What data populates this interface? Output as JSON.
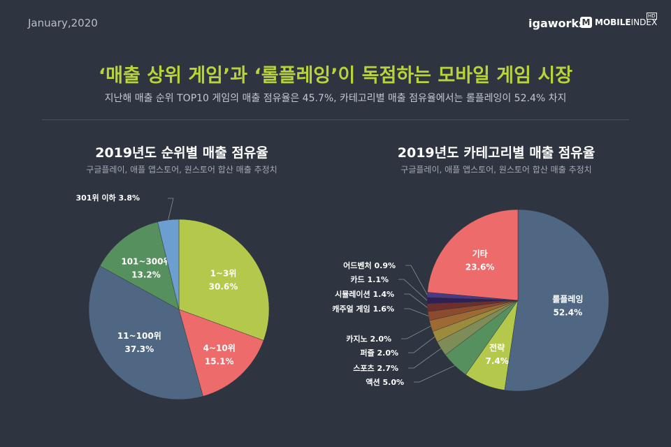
{
  "header": {
    "date": "January,2020",
    "brand_left": "igaworks",
    "brand_right_mark": "M",
    "brand_right_bold": "MOBILE",
    "brand_right_light": "INDEX",
    "brand_right_badge": "HD"
  },
  "title": "‘매출 상위 게임’과 ‘롤플레잉’이 독점하는 모바일 게임 시장",
  "subtitle": "지난해 매출 순위 TOP10 게임의 매출 점유율은 45.7%, 카테고리별 매출 점유율에서는 롤플레잉이 52.4% 차지",
  "colors": {
    "accent": "#b8d43a",
    "background": "#2f3540"
  },
  "chart_data": [
    {
      "type": "pie",
      "title": "2019년도 순위별 매출 점유율",
      "subtitle": "구글플레이, 애플 앱스토어, 원스토어 합산 매출 추정치",
      "slices": [
        {
          "label": "1~3위",
          "value": 30.6,
          "value_label": "30.6%",
          "color": "#b4c94c"
        },
        {
          "label": "4~10위",
          "value": 15.1,
          "value_label": "15.1%",
          "color": "#ee6b6b"
        },
        {
          "label": "11~100위",
          "value": 37.3,
          "value_label": "37.3%",
          "color": "#4f6782"
        },
        {
          "label": "101~300위",
          "value": 13.2,
          "value_label": "13.2%",
          "color": "#56905f"
        },
        {
          "label": "301위 이하",
          "value": 3.8,
          "value_label": "3.8%",
          "color": "#6c9ed0"
        }
      ]
    },
    {
      "type": "pie",
      "title": "2019년도 카테고리별 매출 점유율",
      "subtitle": "구글플레이, 애플 앱스토어, 원스토어 합산 매출 추정치",
      "slices": [
        {
          "label": "롤플레잉",
          "value": 52.4,
          "value_label": "52.4%",
          "color": "#4f6782"
        },
        {
          "label": "전략",
          "value": 7.4,
          "value_label": "7.4%",
          "color": "#b4c94c"
        },
        {
          "label": "액션",
          "value": 5.0,
          "value_label": "5.0%",
          "color": "#56905f"
        },
        {
          "label": "스포츠",
          "value": 2.7,
          "value_label": "2.7%",
          "color": "#7e8c58"
        },
        {
          "label": "퍼즐",
          "value": 2.0,
          "value_label": "2.0%",
          "color": "#9c8b3d"
        },
        {
          "label": "카지노",
          "value": 2.0,
          "value_label": "2.0%",
          "color": "#9e6a34"
        },
        {
          "label": "캐주얼 게임",
          "value": 1.6,
          "value_label": "1.6%",
          "color": "#8c4a2f"
        },
        {
          "label": "시뮬레이션",
          "value": 1.4,
          "value_label": "1.4%",
          "color": "#6d2f2c"
        },
        {
          "label": "카드",
          "value": 1.1,
          "value_label": "1.1%",
          "color": "#2f1f55"
        },
        {
          "label": "어드벤처",
          "value": 0.9,
          "value_label": "0.9%",
          "color": "#4a3a82"
        },
        {
          "label": "기타",
          "value": 23.6,
          "value_label": "23.6%",
          "color": "#ee6b6b"
        }
      ]
    }
  ]
}
